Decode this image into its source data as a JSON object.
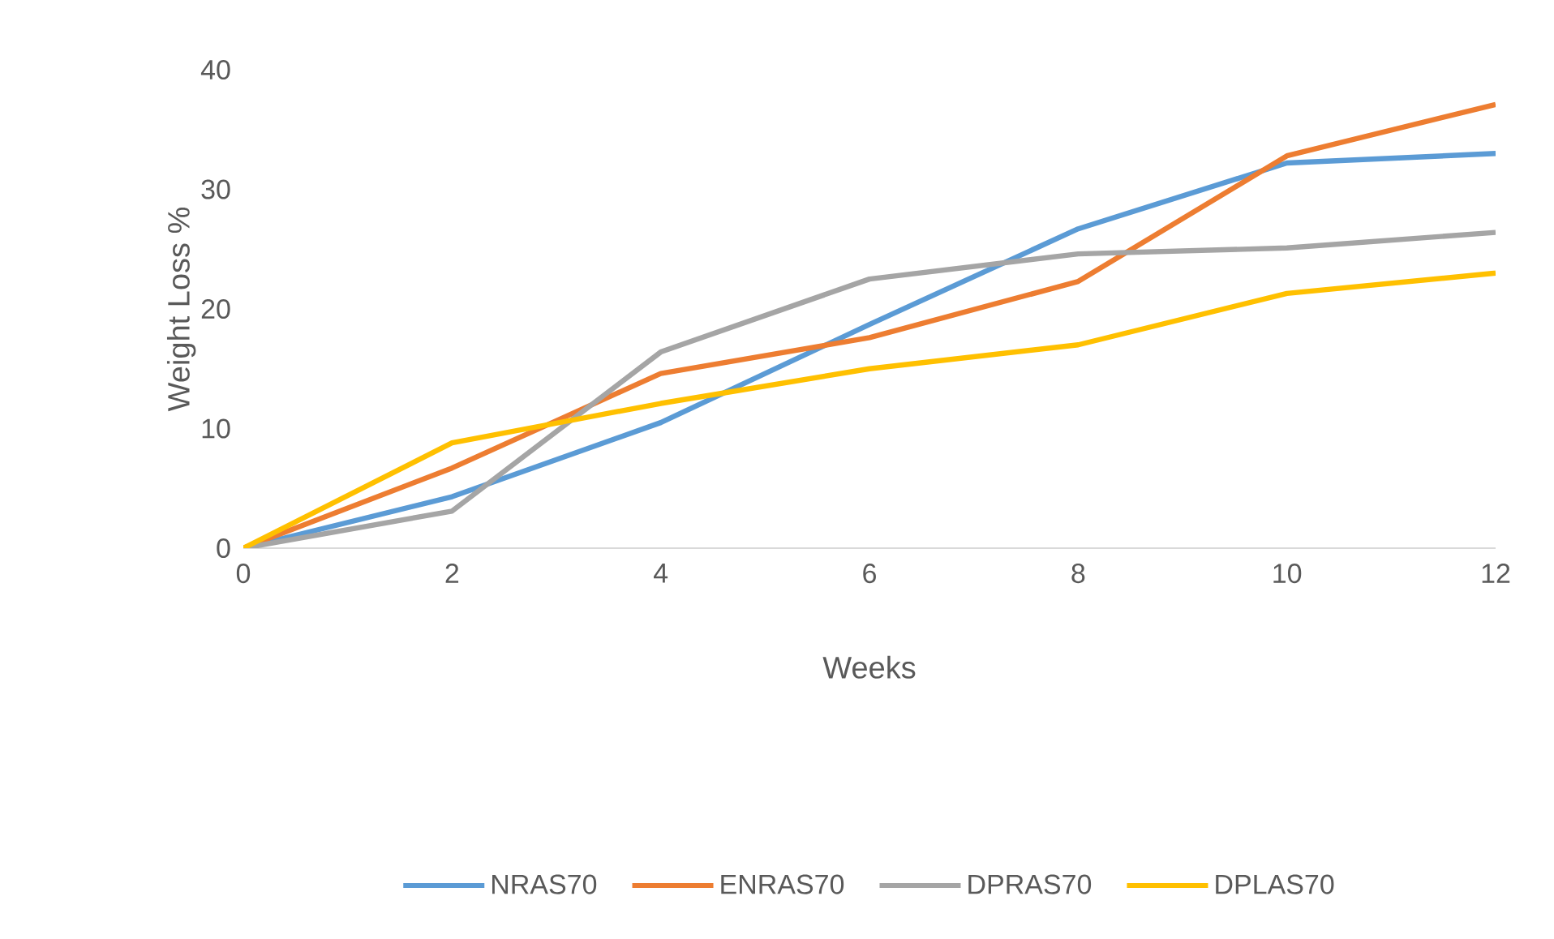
{
  "chart_data": {
    "type": "line",
    "xlabel": "Weeks",
    "ylabel": "Weight Loss %",
    "x": [
      0,
      2,
      4,
      6,
      8,
      10,
      12
    ],
    "series": [
      {
        "name": "NRAS70",
        "color": "#5b9bd5",
        "values": [
          0,
          4.3,
          10.5,
          18.7,
          26.7,
          32.2,
          33.0
        ]
      },
      {
        "name": "ENRAS70",
        "color": "#ed7d31",
        "values": [
          0,
          6.7,
          14.6,
          17.6,
          22.3,
          32.8,
          37.1
        ]
      },
      {
        "name": "DPRAS70",
        "color": "#a5a5a5",
        "values": [
          0,
          3.1,
          16.4,
          22.5,
          24.6,
          25.1,
          26.4
        ]
      },
      {
        "name": "DPLAS70",
        "color": "#ffc000",
        "values": [
          0,
          8.8,
          12.1,
          15.0,
          17.0,
          21.3,
          23.0
        ]
      }
    ],
    "xlim": [
      0,
      12
    ],
    "xticks": [
      0,
      2,
      4,
      6,
      8,
      10,
      12
    ],
    "ylim": [
      0,
      40
    ],
    "yticks": [
      0,
      10,
      20,
      30,
      40
    ],
    "grid": false,
    "legend": "bottom",
    "marker": "none",
    "line_style": "solid"
  }
}
